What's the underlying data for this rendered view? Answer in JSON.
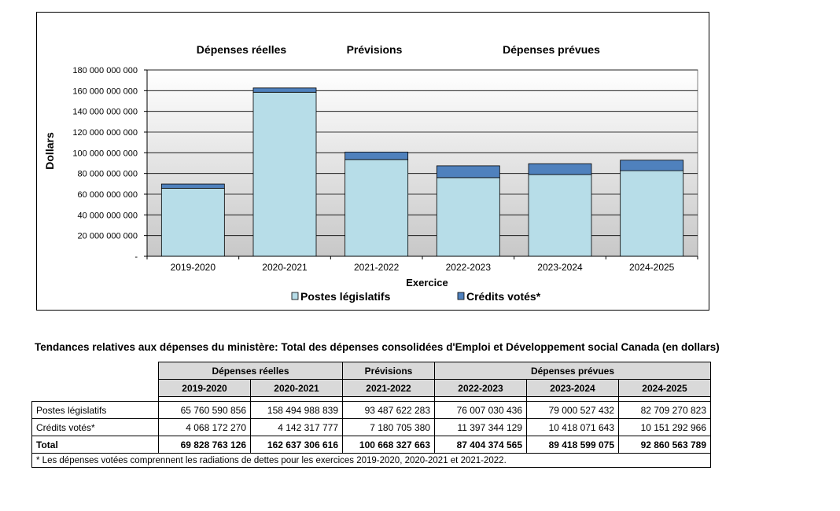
{
  "chart_data": {
    "type": "bar",
    "stacked": true,
    "categories": [
      "2019-2020",
      "2020-2021",
      "2021-2022",
      "2022-2023",
      "2023-2024",
      "2024-2025"
    ],
    "series": [
      {
        "name": "Postes législatifs",
        "color": "#b7dde8",
        "values": [
          65760590856,
          158494988839,
          93487622283,
          76007030436,
          79000527432,
          82709270823
        ]
      },
      {
        "name": "Crédits votés*",
        "color": "#4f81bd",
        "values": [
          4068172270,
          4142317777,
          7180705380,
          11397344129,
          10418071643,
          10151292966
        ]
      }
    ],
    "group_labels": [
      "Dépenses réelles",
      "Prévisions",
      "Dépenses prévues"
    ],
    "xlabel": "Exercice",
    "ylabel": "Dollars",
    "ylim": [
      0,
      180000000000
    ],
    "yticks": [
      0,
      20000000000,
      40000000000,
      60000000000,
      80000000000,
      100000000000,
      120000000000,
      140000000000,
      160000000000,
      180000000000
    ],
    "ytick_labels": [
      "-",
      "20 000 000 000",
      "40 000 000 000",
      "60 000 000 000",
      "80 000 000 000",
      "100 000 000 000",
      "120 000 000 000",
      "140 000 000 000",
      "160 000 000 000",
      "180 000 000 000"
    ],
    "legend": [
      "Postes législatifs",
      "Crédits votés*"
    ],
    "legend_position": "bottom"
  },
  "table": {
    "title": "Tendances relatives aux dépenses du ministère: Total des dépenses consolidées d'Emploi et Développement social Canada (en dollars)",
    "groups": [
      "Dépenses réelles",
      "Prévisions",
      "Dépenses prévues"
    ],
    "years": [
      "2019-2020",
      "2020-2021",
      "2021-2022",
      "2022-2023",
      "2023-2024",
      "2024-2025"
    ],
    "rows": [
      {
        "label": "Postes législatifs",
        "values": [
          "65 760 590 856",
          "158 494 988 839",
          "93 487 622 283",
          "76 007 030 436",
          "79 000 527 432",
          "82 709 270 823"
        ]
      },
      {
        "label": "Crédits votés*",
        "values": [
          "4 068 172 270",
          "4 142 317 777",
          "7 180 705 380",
          "11 397 344 129",
          "10 418 071 643",
          "10 151 292 966"
        ]
      },
      {
        "label": "Total",
        "values": [
          "69 828 763 126",
          "162 637 306 616",
          "100 668 327 663",
          "87 404 374 565",
          "89 418 599 075",
          "92 860 563 789"
        ]
      }
    ],
    "note": "*    Les dépenses votées comprennent les radiations de dettes pour les exercices 2019-2020, 2020-2021 et 2021-2022."
  }
}
